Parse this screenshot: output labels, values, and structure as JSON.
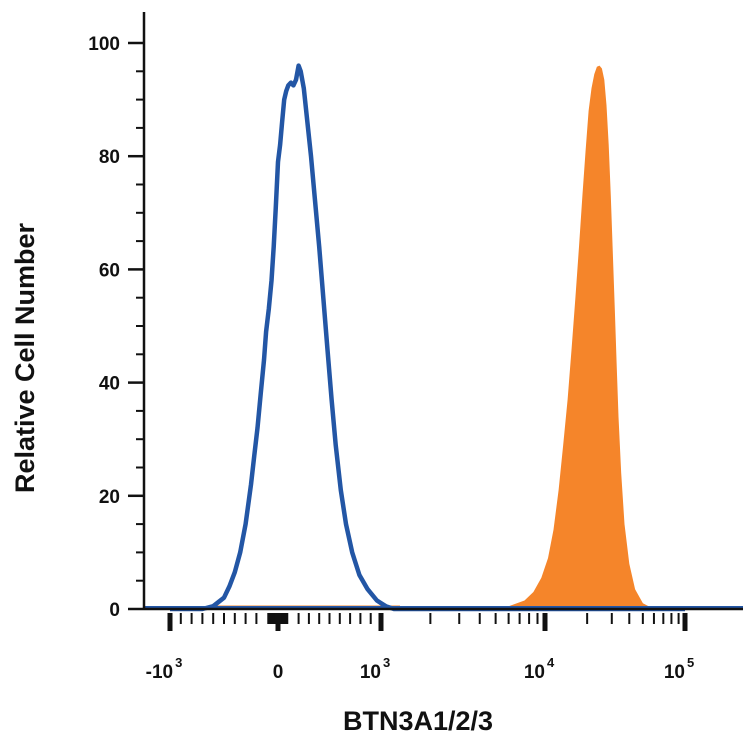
{
  "chart_data": {
    "type": "area",
    "xlabel": "BTN3A1/2/3",
    "ylabel": "Relative Cell Number",
    "x_scale": "biexponential",
    "ylim": [
      0,
      100
    ],
    "y_ticks": [
      {
        "value": 0,
        "label": "0"
      },
      {
        "value": 20,
        "label": "20"
      },
      {
        "value": 40,
        "label": "40"
      },
      {
        "value": 60,
        "label": "60"
      },
      {
        "value": 80,
        "label": "80"
      },
      {
        "value": 100,
        "label": "100"
      }
    ],
    "x_ticks": [
      {
        "value": -1000,
        "base": "-10",
        "exp": "3"
      },
      {
        "value": 0,
        "base": "0",
        "exp": ""
      },
      {
        "value": 1000,
        "base": "10",
        "exp": "3"
      },
      {
        "value": 10000,
        "base": "10",
        "exp": "4"
      },
      {
        "value": 100000,
        "base": "10",
        "exp": "5"
      }
    ],
    "grid": false,
    "series": [
      {
        "style": "filled",
        "color": "#f5852a",
        "points": [
          [
            3500,
            0
          ],
          [
            6000,
            0.5
          ],
          [
            7500,
            1.5
          ],
          [
            8500,
            3
          ],
          [
            9500,
            5.5
          ],
          [
            10500,
            9
          ],
          [
            11500,
            14
          ],
          [
            12500,
            21
          ],
          [
            13500,
            29
          ],
          [
            14500,
            37
          ],
          [
            15500,
            46
          ],
          [
            16500,
            55
          ],
          [
            17500,
            64
          ],
          [
            18500,
            73
          ],
          [
            19500,
            81
          ],
          [
            20500,
            88
          ],
          [
            21500,
            92
          ],
          [
            22500,
            94.5
          ],
          [
            23500,
            95.8
          ],
          [
            24500,
            96
          ],
          [
            25500,
            95.5
          ],
          [
            26500,
            93.5
          ],
          [
            27500,
            89
          ],
          [
            28500,
            82
          ],
          [
            29500,
            73
          ],
          [
            30500,
            63
          ],
          [
            31500,
            53
          ],
          [
            32500,
            43
          ],
          [
            33500,
            34
          ],
          [
            35000,
            24
          ],
          [
            37000,
            15
          ],
          [
            40000,
            8
          ],
          [
            44000,
            3.5
          ],
          [
            50000,
            1
          ],
          [
            60000,
            0
          ]
        ]
      },
      {
        "style": "outline",
        "color": "#2356a5",
        "points": [
          [
            -1000,
            0
          ],
          [
            -700,
            0
          ],
          [
            -600,
            0.5
          ],
          [
            -500,
            2
          ],
          [
            -450,
            4
          ],
          [
            -400,
            6.5
          ],
          [
            -350,
            10
          ],
          [
            -300,
            15
          ],
          [
            -250,
            22
          ],
          [
            -220,
            27
          ],
          [
            -190,
            32
          ],
          [
            -160,
            38
          ],
          [
            -130,
            44
          ],
          [
            -110,
            49
          ],
          [
            -85,
            53
          ],
          [
            -60,
            58
          ],
          [
            -40,
            64
          ],
          [
            -20,
            71
          ],
          [
            0,
            79
          ],
          [
            20,
            82
          ],
          [
            40,
            86
          ],
          [
            60,
            90
          ],
          [
            80,
            91.5
          ],
          [
            100,
            92.5
          ],
          [
            125,
            93
          ],
          [
            150,
            92.5
          ],
          [
            175,
            93.5
          ],
          [
            200,
            96
          ],
          [
            220,
            95
          ],
          [
            250,
            92
          ],
          [
            280,
            87
          ],
          [
            320,
            80
          ],
          [
            360,
            72
          ],
          [
            400,
            64
          ],
          [
            440,
            55
          ],
          [
            480,
            46
          ],
          [
            520,
            37
          ],
          [
            560,
            29
          ],
          [
            610,
            21
          ],
          [
            660,
            15
          ],
          [
            720,
            10
          ],
          [
            790,
            6
          ],
          [
            870,
            3.5
          ],
          [
            960,
            1.5
          ],
          [
            1070,
            0.5
          ],
          [
            1200,
            0
          ],
          [
            100000,
            0
          ]
        ]
      }
    ]
  }
}
